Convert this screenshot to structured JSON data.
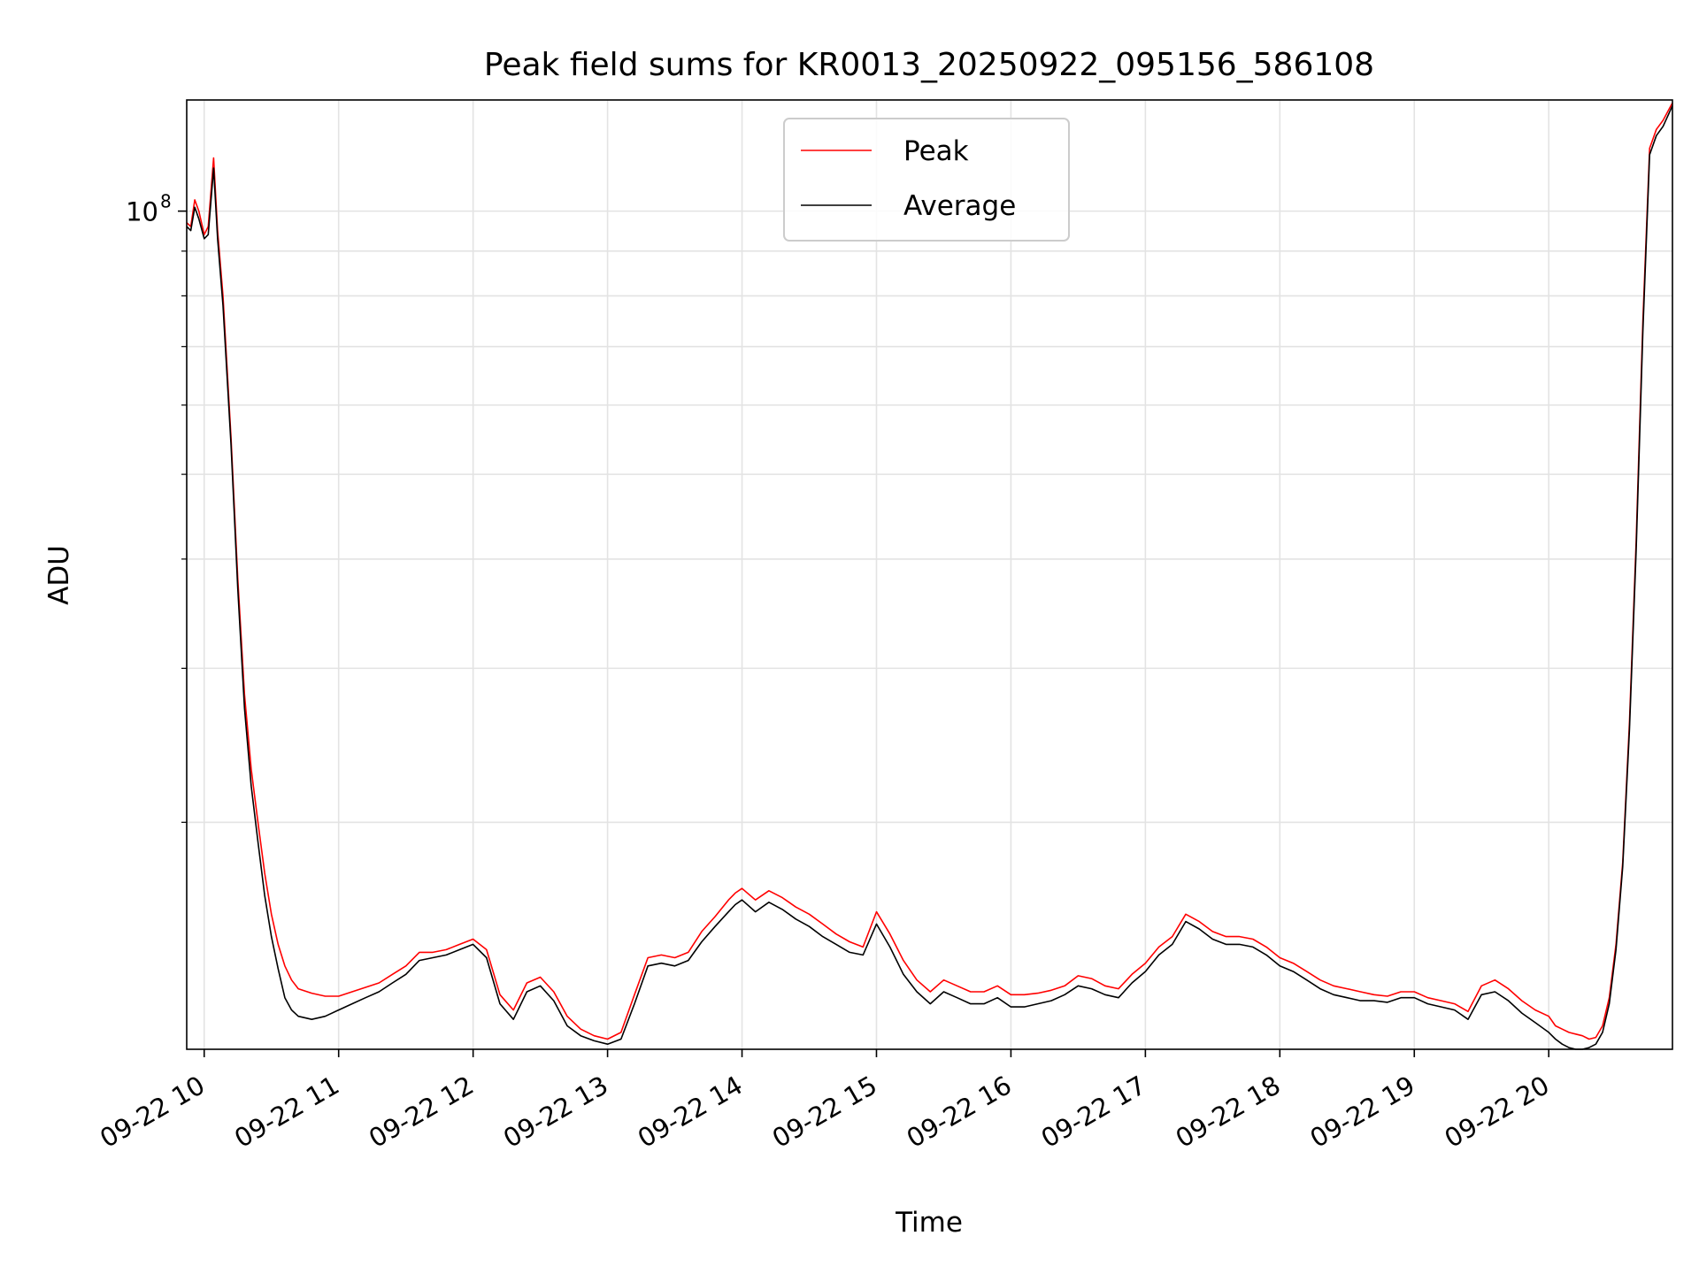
{
  "chart_data": {
    "type": "line",
    "title": "Peak field sums for KR0013_20250922_095156_586108",
    "xlabel": "Time",
    "ylabel": "ADU",
    "x_unit": "hours (2025-09-22)",
    "xlim": [
      9.87,
      20.92
    ],
    "yscale": "log",
    "ylim": [
      11000000,
      134000000
    ],
    "grid": true,
    "legend_location": "upper center",
    "x_ticks": [
      {
        "value": 10,
        "label": "09-22 10"
      },
      {
        "value": 11,
        "label": "09-22 11"
      },
      {
        "value": 12,
        "label": "09-22 12"
      },
      {
        "value": 13,
        "label": "09-22 13"
      },
      {
        "value": 14,
        "label": "09-22 14"
      },
      {
        "value": 15,
        "label": "09-22 15"
      },
      {
        "value": 16,
        "label": "09-22 16"
      },
      {
        "value": 17,
        "label": "09-22 17"
      },
      {
        "value": 18,
        "label": "09-22 18"
      },
      {
        "value": 19,
        "label": "09-22 19"
      },
      {
        "value": 20,
        "label": "09-22 20"
      }
    ],
    "y_major_ticks": [
      {
        "value": 100000000,
        "base": "10",
        "exponent": "8"
      }
    ],
    "y_minor_ticks": [
      20000000,
      30000000,
      40000000,
      50000000,
      60000000,
      70000000,
      80000000,
      90000000
    ],
    "series": [
      {
        "name": "Peak",
        "color": "#ff0000",
        "x": [
          9.87,
          9.9,
          9.93,
          9.96,
          10.0,
          10.03,
          10.07,
          10.1,
          10.14,
          10.2,
          10.25,
          10.3,
          10.35,
          10.4,
          10.45,
          10.5,
          10.55,
          10.6,
          10.65,
          10.7,
          10.8,
          10.9,
          11.0,
          11.1,
          11.2,
          11.3,
          11.4,
          11.5,
          11.6,
          11.7,
          11.8,
          11.9,
          12.0,
          12.1,
          12.2,
          12.3,
          12.4,
          12.5,
          12.6,
          12.7,
          12.8,
          12.9,
          13.0,
          13.1,
          13.2,
          13.3,
          13.4,
          13.5,
          13.6,
          13.7,
          13.8,
          13.9,
          13.95,
          14.0,
          14.1,
          14.2,
          14.3,
          14.4,
          14.5,
          14.6,
          14.7,
          14.8,
          14.9,
          15.0,
          15.1,
          15.2,
          15.3,
          15.4,
          15.5,
          15.6,
          15.7,
          15.8,
          15.9,
          16.0,
          16.1,
          16.2,
          16.3,
          16.4,
          16.5,
          16.6,
          16.7,
          16.8,
          16.9,
          17.0,
          17.1,
          17.2,
          17.3,
          17.4,
          17.5,
          17.6,
          17.7,
          17.8,
          17.9,
          18.0,
          18.1,
          18.2,
          18.3,
          18.4,
          18.5,
          18.6,
          18.7,
          18.8,
          18.9,
          19.0,
          19.1,
          19.2,
          19.3,
          19.4,
          19.5,
          19.6,
          19.7,
          19.8,
          19.9,
          20.0,
          20.05,
          20.1,
          20.15,
          20.2,
          20.25,
          20.3,
          20.35,
          20.4,
          20.45,
          20.5,
          20.55,
          20.6,
          20.65,
          20.7,
          20.75,
          20.8,
          20.85,
          20.92
        ],
        "y": [
          97000000,
          96000000,
          103000000,
          100000000,
          94000000,
          96000000,
          115000000,
          95000000,
          80000000,
          55000000,
          38000000,
          28000000,
          23000000,
          20000000,
          17500000,
          15700000,
          14500000,
          13700000,
          13200000,
          12900000,
          12750000,
          12650000,
          12650000,
          12800000,
          12950000,
          13100000,
          13400000,
          13700000,
          14200000,
          14200000,
          14300000,
          14500000,
          14700000,
          14300000,
          12700000,
          12200000,
          13100000,
          13300000,
          12800000,
          12000000,
          11600000,
          11400000,
          11300000,
          11500000,
          12700000,
          14000000,
          14100000,
          14000000,
          14200000,
          15000000,
          15600000,
          16300000,
          16600000,
          16800000,
          16300000,
          16700000,
          16400000,
          16000000,
          15700000,
          15300000,
          14900000,
          14600000,
          14400000,
          15800000,
          14900000,
          13900000,
          13200000,
          12800000,
          13200000,
          13000000,
          12800000,
          12800000,
          13000000,
          12700000,
          12700000,
          12750000,
          12850000,
          13000000,
          13350000,
          13250000,
          13000000,
          12900000,
          13400000,
          13800000,
          14400000,
          14800000,
          15700000,
          15400000,
          15000000,
          14800000,
          14800000,
          14700000,
          14400000,
          14000000,
          13800000,
          13500000,
          13200000,
          13000000,
          12900000,
          12800000,
          12700000,
          12650000,
          12800000,
          12800000,
          12600000,
          12500000,
          12400000,
          12150000,
          13000000,
          13200000,
          12900000,
          12500000,
          12200000,
          12000000,
          11700000,
          11600000,
          11500000,
          11450000,
          11400000,
          11300000,
          11350000,
          11700000,
          12600000,
          14500000,
          18000000,
          26000000,
          42000000,
          75000000,
          118000000,
          124000000,
          127000000,
          133000000
        ]
      },
      {
        "name": "Average",
        "color": "#000000",
        "x": [
          9.87,
          9.9,
          9.93,
          9.96,
          10.0,
          10.03,
          10.07,
          10.1,
          10.14,
          10.2,
          10.25,
          10.3,
          10.35,
          10.4,
          10.45,
          10.5,
          10.55,
          10.6,
          10.65,
          10.7,
          10.8,
          10.9,
          11.0,
          11.1,
          11.2,
          11.3,
          11.4,
          11.5,
          11.6,
          11.7,
          11.8,
          11.9,
          12.0,
          12.1,
          12.2,
          12.3,
          12.4,
          12.5,
          12.6,
          12.7,
          12.8,
          12.9,
          13.0,
          13.1,
          13.2,
          13.3,
          13.4,
          13.5,
          13.6,
          13.7,
          13.8,
          13.9,
          13.95,
          14.0,
          14.1,
          14.2,
          14.3,
          14.4,
          14.5,
          14.6,
          14.7,
          14.8,
          14.9,
          15.0,
          15.1,
          15.2,
          15.3,
          15.4,
          15.5,
          15.6,
          15.7,
          15.8,
          15.9,
          16.0,
          16.1,
          16.2,
          16.3,
          16.4,
          16.5,
          16.6,
          16.7,
          16.8,
          16.9,
          17.0,
          17.1,
          17.2,
          17.3,
          17.4,
          17.5,
          17.6,
          17.7,
          17.8,
          17.9,
          18.0,
          18.1,
          18.2,
          18.3,
          18.4,
          18.5,
          18.6,
          18.7,
          18.8,
          18.9,
          19.0,
          19.1,
          19.2,
          19.3,
          19.4,
          19.5,
          19.6,
          19.7,
          19.8,
          19.9,
          20.0,
          20.05,
          20.1,
          20.15,
          20.2,
          20.25,
          20.3,
          20.35,
          20.4,
          20.45,
          20.5,
          20.55,
          20.6,
          20.65,
          20.7,
          20.75,
          20.8,
          20.85,
          20.92
        ],
        "y": [
          96000000,
          95000000,
          101000000,
          98000000,
          93000000,
          94000000,
          112000000,
          93000000,
          78000000,
          54000000,
          37000000,
          27000000,
          22000000,
          19000000,
          16500000,
          14800000,
          13600000,
          12600000,
          12200000,
          12000000,
          11900000,
          12000000,
          12200000,
          12400000,
          12600000,
          12800000,
          13100000,
          13400000,
          13900000,
          14000000,
          14100000,
          14300000,
          14500000,
          14000000,
          12400000,
          11900000,
          12800000,
          13000000,
          12500000,
          11700000,
          11400000,
          11250000,
          11150000,
          11300000,
          12400000,
          13700000,
          13800000,
          13700000,
          13900000,
          14600000,
          15200000,
          15800000,
          16100000,
          16300000,
          15800000,
          16200000,
          15900000,
          15500000,
          15200000,
          14800000,
          14500000,
          14200000,
          14100000,
          15300000,
          14400000,
          13400000,
          12800000,
          12400000,
          12800000,
          12600000,
          12400000,
          12400000,
          12600000,
          12300000,
          12300000,
          12400000,
          12500000,
          12700000,
          13000000,
          12900000,
          12700000,
          12600000,
          13100000,
          13500000,
          14100000,
          14500000,
          15400000,
          15100000,
          14700000,
          14500000,
          14500000,
          14400000,
          14100000,
          13700000,
          13500000,
          13200000,
          12900000,
          12700000,
          12600000,
          12500000,
          12500000,
          12450000,
          12600000,
          12600000,
          12400000,
          12300000,
          12200000,
          11900000,
          12700000,
          12800000,
          12500000,
          12100000,
          11800000,
          11500000,
          11300000,
          11150000,
          11050000,
          11000000,
          11000000,
          11050000,
          11150000,
          11500000,
          12400000,
          14300000,
          17800000,
          25500000,
          41000000,
          73000000,
          116000000,
          122000000,
          125000000,
          132000000
        ]
      }
    ]
  }
}
